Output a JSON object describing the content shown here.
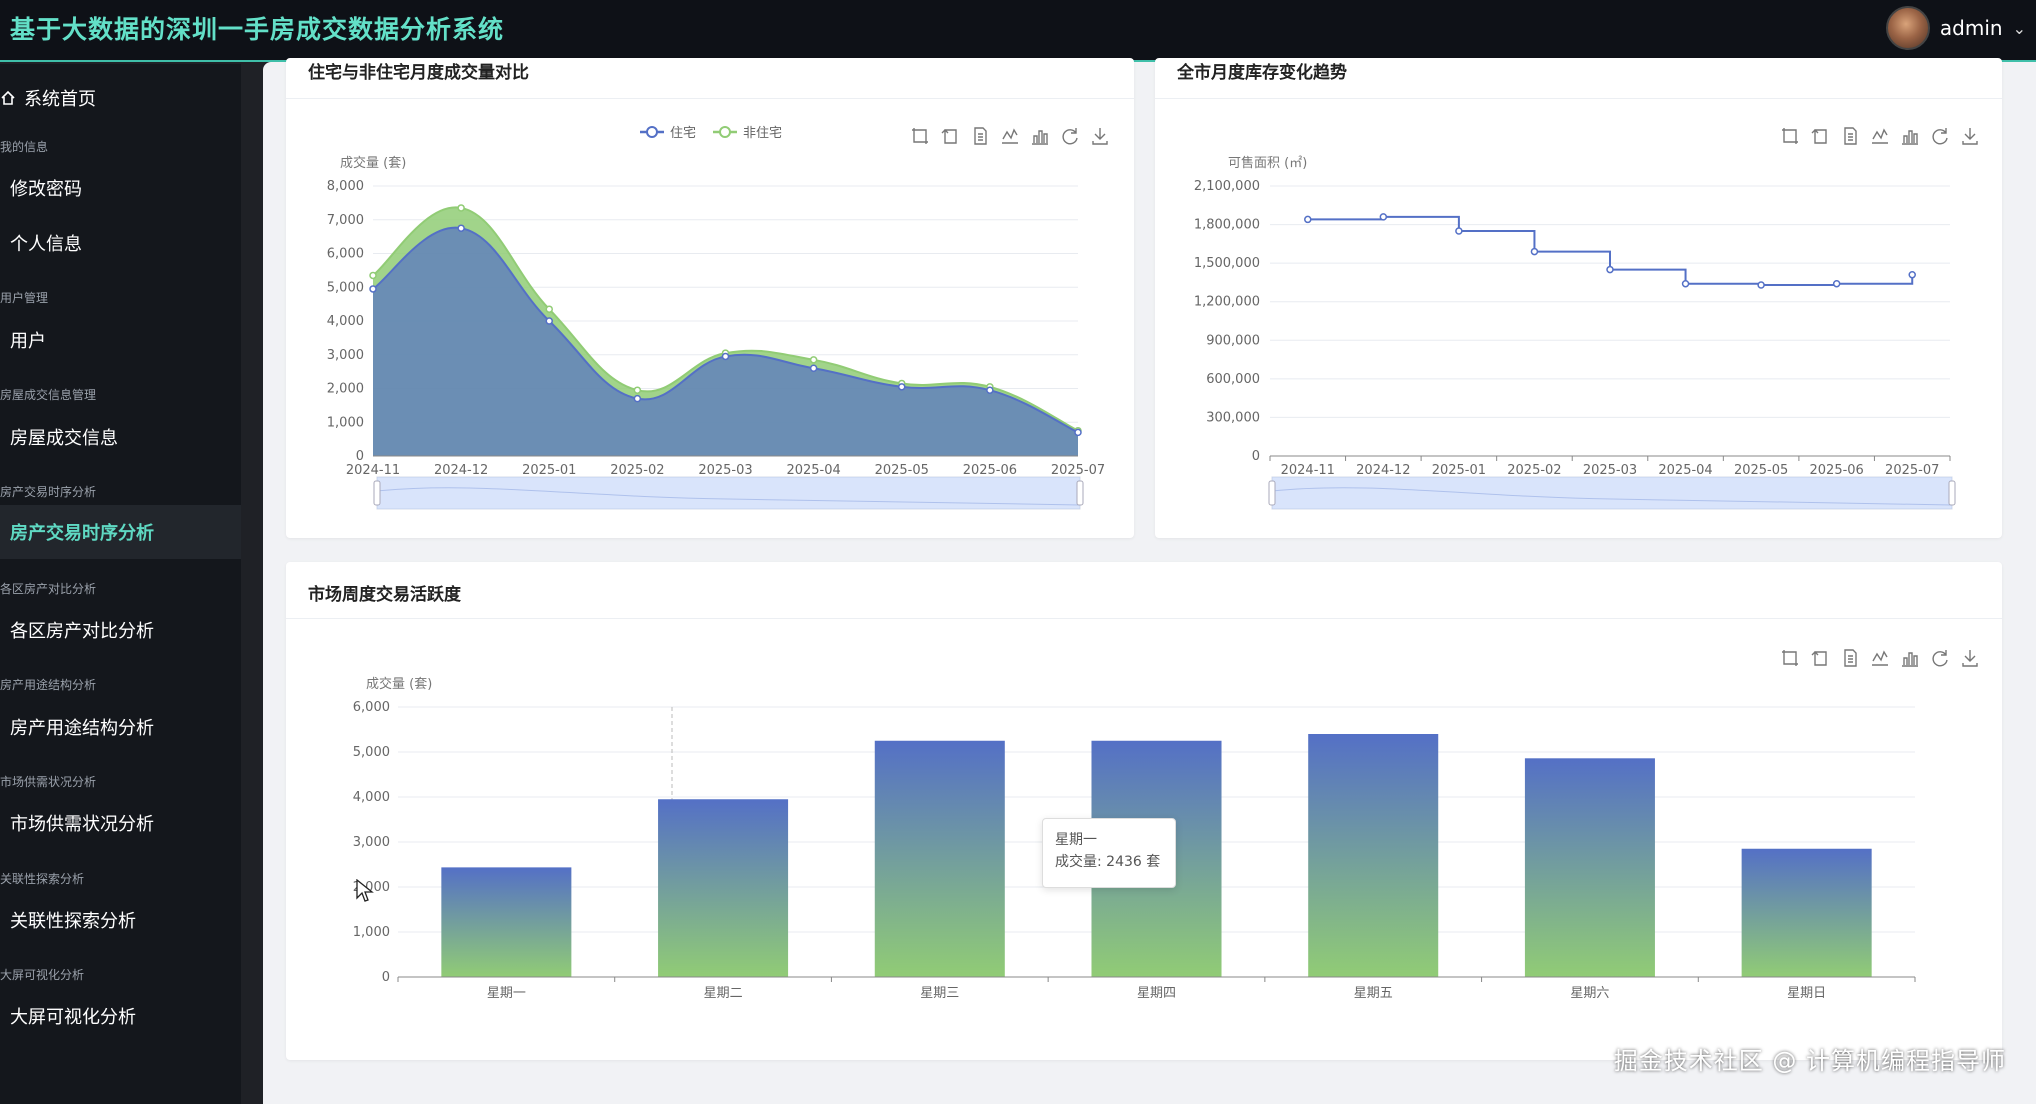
{
  "app": {
    "title": "基于大数据的深圳一手房成交数据分析系统"
  },
  "user": {
    "name": "admin"
  },
  "sidebar": {
    "home": "系统首页",
    "groups": [
      {
        "label": "我的信息",
        "items": [
          "修改密码",
          "个人信息"
        ]
      },
      {
        "label": "用户管理",
        "items": [
          "用户"
        ]
      },
      {
        "label": "房屋成交信息管理",
        "items": [
          "房屋成交信息"
        ]
      },
      {
        "label": "房产交易时序分析",
        "items": [
          "房产交易时序分析"
        ]
      },
      {
        "label": "各区房产对比分析",
        "items": [
          "各区房产对比分析"
        ]
      },
      {
        "label": "房产用途结构分析",
        "items": [
          "房产用途结构分析"
        ]
      },
      {
        "label": "市场供需状况分析",
        "items": [
          "市场供需状况分析"
        ]
      },
      {
        "label": "关联性探索分析",
        "items": [
          "关联性探索分析"
        ]
      },
      {
        "label": "大屏可视化分析",
        "items": [
          "大屏可视化分析"
        ]
      }
    ],
    "active_item": "房产交易时序分析"
  },
  "cards": {
    "residential": {
      "title": "住宅与非住宅月度成交量对比"
    },
    "inventory": {
      "title": "全市月度库存变化趋势"
    },
    "weekly": {
      "title": "市场周度交易活跃度"
    }
  },
  "toolbox_icons": [
    "zoom-icon",
    "zoom-reset-icon",
    "data-view-icon",
    "line-switch-icon",
    "bar-switch-icon",
    "restore-icon",
    "save-image-icon"
  ],
  "chart_data": [
    {
      "type": "area",
      "x": [
        "2024-11",
        "2024-12",
        "2025-01",
        "2025-02",
        "2025-03",
        "2025-04",
        "2025-05",
        "2025-06",
        "2025-07"
      ],
      "series": [
        {
          "name": "住宅",
          "values": [
            4950,
            6750,
            4000,
            1700,
            2950,
            2600,
            2050,
            1950,
            700
          ],
          "color": "#5470c6"
        },
        {
          "name": "非住宅",
          "values": [
            5350,
            7350,
            4350,
            1950,
            3050,
            2850,
            2150,
            2050,
            750
          ],
          "color": "#91cc75"
        }
      ],
      "ylabel": "成交量 (套)",
      "ylim": [
        0,
        8000
      ],
      "yticks": [
        0,
        1000,
        2000,
        3000,
        4000,
        5000,
        6000,
        7000,
        8000
      ],
      "legend": "top-center",
      "grid": true,
      "datazoom": true
    },
    {
      "type": "line",
      "step": true,
      "x": [
        "2024-11",
        "2024-12",
        "2025-01",
        "2025-02",
        "2025-03",
        "2025-04",
        "2025-05",
        "2025-06",
        "2025-07"
      ],
      "series": [
        {
          "values": [
            1840000,
            1860000,
            1750000,
            1590000,
            1450000,
            1340000,
            1330000,
            1340000,
            1410000
          ],
          "color": "#5470c6"
        }
      ],
      "ylabel": "可售面积 (㎡)",
      "ylim": [
        0,
        2100000
      ],
      "yticks": [
        0,
        300000,
        600000,
        900000,
        1200000,
        1500000,
        1800000,
        2100000
      ],
      "grid": true,
      "datazoom": true
    },
    {
      "type": "bar",
      "categories": [
        "星期一",
        "星期二",
        "星期三",
        "星期四",
        "星期五",
        "星期六",
        "星期日"
      ],
      "values": [
        2436,
        3950,
        5250,
        5250,
        5400,
        4860,
        2850
      ],
      "ylabel": "成交量 (套)",
      "ylim": [
        0,
        6000
      ],
      "yticks": [
        0,
        1000,
        2000,
        3000,
        4000,
        5000,
        6000
      ],
      "grid": true,
      "gradient": [
        "#5470c6",
        "#91cc75"
      ],
      "tooltip": {
        "title": "星期一",
        "text": "成交量: 2436 套"
      }
    }
  ],
  "watermark": "掘金技术社区 @ 计算机编程指导师"
}
